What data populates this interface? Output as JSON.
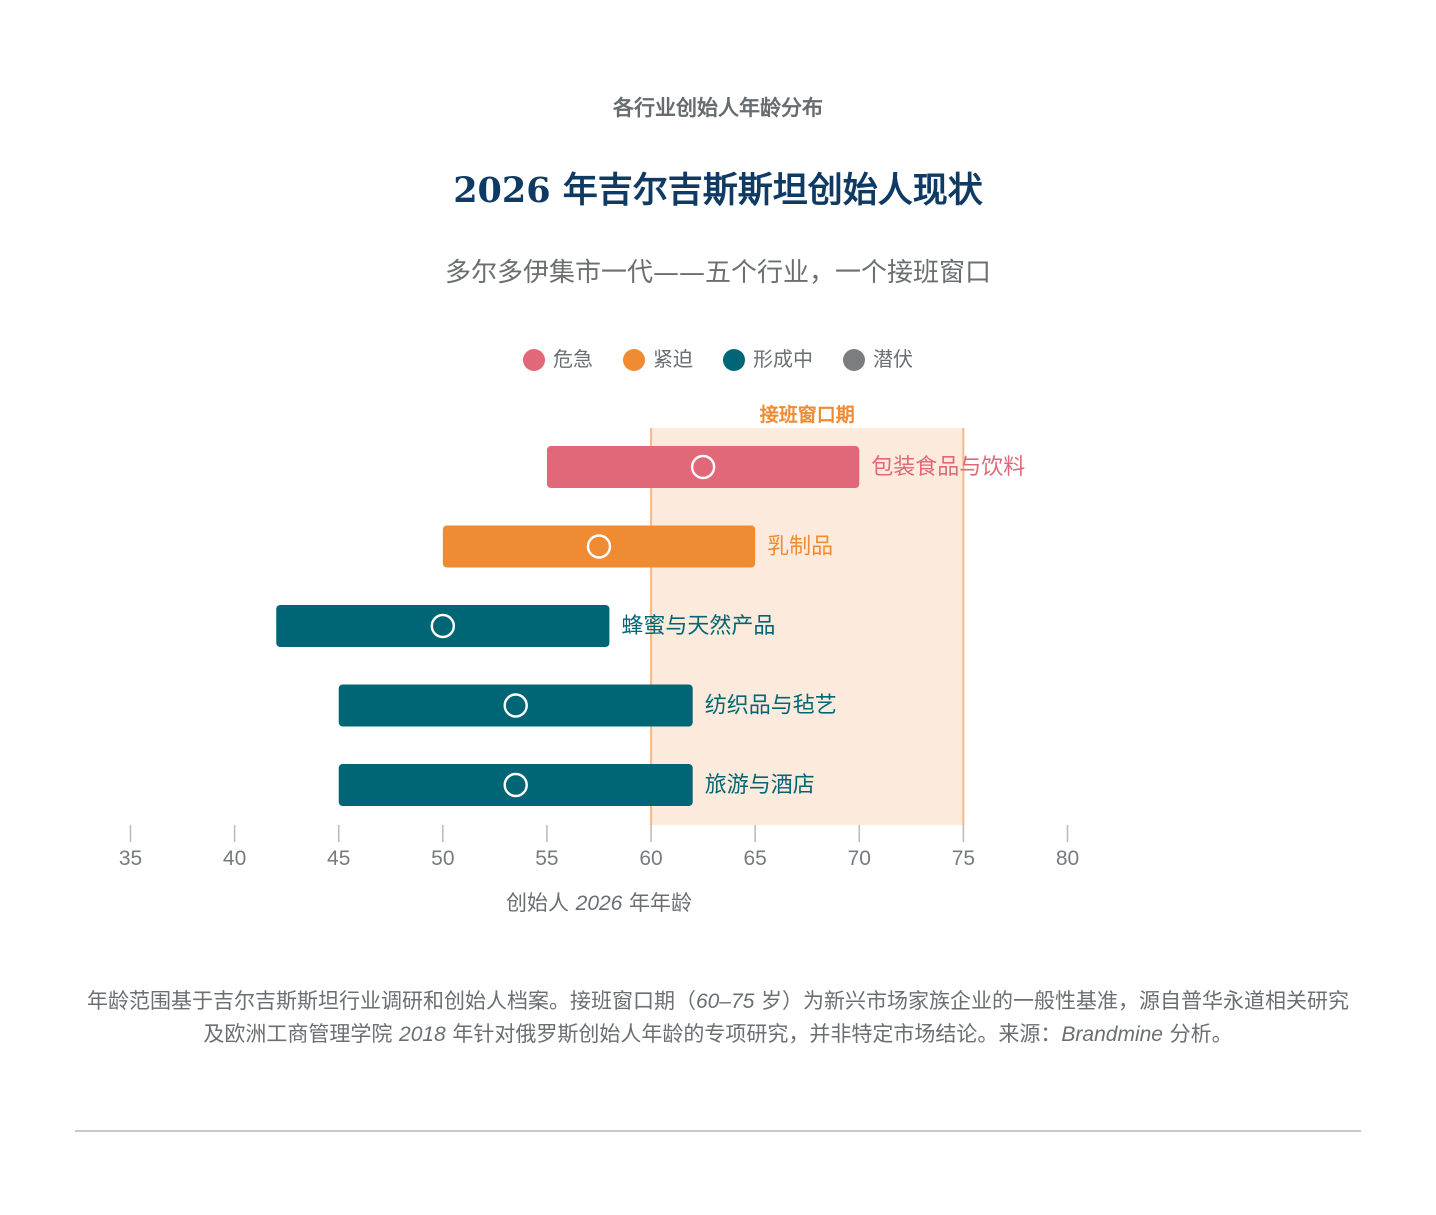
{
  "header": {
    "kicker": "各行业创始人年龄分布",
    "title": "2026 年吉尔吉斯斯坦创始人现状",
    "subtitle": "多尔多伊集市一代——五个行业，一个接班窗口"
  },
  "legend": [
    {
      "label": "危急",
      "color": "#e06878"
    },
    {
      "label": "紧迫",
      "color": "#ef8b33"
    },
    {
      "label": "形成中",
      "color": "#006675"
    },
    {
      "label": "潜伏",
      "color": "#7b7e81"
    }
  ],
  "chart_data": {
    "type": "range-bar",
    "window": {
      "label": "接班窗口期",
      "from": 60,
      "to": 75,
      "color": "#f4b98a",
      "fill": "#fcebdc"
    },
    "xlim": [
      35,
      80
    ],
    "ticks": [
      35,
      40,
      45,
      50,
      55,
      60,
      65,
      70,
      75,
      80
    ],
    "xlabel_pre": "创始人 ",
    "xlabel_year": "2026",
    "xlabel_post": " 年年龄",
    "series": [
      {
        "label": "包装食品与饮料",
        "min": 55,
        "max": 70,
        "median": 62.5,
        "status": "危急",
        "color": "#e06878"
      },
      {
        "label": "乳制品",
        "min": 50,
        "max": 65,
        "median": 57.5,
        "status": "紧迫",
        "color": "#ef8b33"
      },
      {
        "label": "蜂蜜与天然产品",
        "min": 42,
        "max": 58,
        "median": 50,
        "status": "形成中",
        "color": "#006675"
      },
      {
        "label": "纺织品与毡艺",
        "min": 45,
        "max": 62,
        "median": 53.5,
        "status": "形成中",
        "color": "#006675"
      },
      {
        "label": "旅游与酒店",
        "min": 45,
        "max": 62,
        "median": 53.5,
        "status": "形成中",
        "color": "#006675"
      }
    ]
  },
  "footnote": {
    "p1": "年龄范围基于吉尔吉斯斯坦行业调研和创始人档案。接班窗口期（",
    "range": "60–75",
    "p2": " 岁）为新兴市场家族企业的一般性基准，源自普华永道相关研究及欧洲工商管理学院 ",
    "year": "2018",
    "p3": " 年针对俄罗斯创始人年龄的专项研究，并非特定市场结论。来源：",
    "brand": "Brandmine",
    "p4": " 分析。"
  }
}
